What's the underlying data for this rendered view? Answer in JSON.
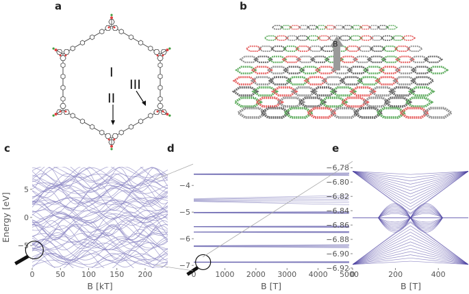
{
  "figure": {
    "panel_labels": {
      "a": "a",
      "b": "b",
      "c": "c",
      "d": "d",
      "e": "e"
    },
    "panel_a": {
      "region_labels": [
        "I",
        "II",
        "III"
      ],
      "description_colors": {
        "bond": "#444444",
        "boron": "#3c9a3c",
        "oxygen": "#e04040"
      }
    },
    "panel_b": {
      "field_label": "B",
      "arrow_color": "#9a9a9a"
    }
  },
  "chart_data": [
    {
      "panel": "c",
      "type": "line",
      "title": "",
      "xlabel": "B [kT]",
      "ylabel": "Energy [eV]",
      "xlim": [
        0,
        240
      ],
      "ylim": [
        -9,
        9
      ],
      "x_ticks": [
        0,
        50,
        100,
        150,
        200
      ],
      "y_ticks": [
        -5,
        0,
        5
      ],
      "grid": false,
      "line_color": "#8e88c4",
      "series": [
        {
          "values_description": "Hofstadter butterfly band structure; dense crossing bands spanning -9 to 9 eV"
        }
      ],
      "annotation": "magnifier circle at B≈0, E≈-6"
    },
    {
      "panel": "d",
      "type": "line",
      "title": "",
      "xlabel": "B [T]",
      "ylabel": "",
      "xlim": [
        0,
        5000
      ],
      "ylim": [
        -7.1,
        -3.2
      ],
      "x_ticks": [
        0,
        1000,
        2000,
        3000,
        4000,
        5000
      ],
      "y_ticks": [
        -7,
        -6,
        -5,
        -4
      ],
      "grid": false,
      "line_color": "#5a55a8",
      "band_groups_eV": [
        {
          "center": -3.58,
          "spread": 0.1
        },
        {
          "center": -4.55,
          "spread": 0.35
        },
        {
          "center": -5.02,
          "spread": 0.08
        },
        {
          "center": -5.55,
          "spread": 0.06
        },
        {
          "center": -5.75,
          "spread": 0.05
        },
        {
          "center": -6.28,
          "spread": 0.12
        },
        {
          "center": -6.88,
          "spread": 0.05
        }
      ],
      "annotation": "magnifier circle at B≈300, E≈-6.9"
    },
    {
      "panel": "e",
      "type": "line",
      "title": "",
      "xlabel": "B [T]",
      "ylabel": "",
      "xlim": [
        0,
        540
      ],
      "ylim": [
        -6.92,
        -6.775
      ],
      "x_ticks": [
        0,
        200,
        400
      ],
      "y_ticks": [
        -6.78,
        -6.8,
        -6.82,
        -6.84,
        -6.86,
        -6.88,
        -6.9,
        -6.92
      ],
      "y_tick_labels": [
        "−6.78",
        "−6.80",
        "−6.82",
        "−6.84",
        "−6.86",
        "−6.88",
        "−6.90",
        "−6.92"
      ],
      "grid": false,
      "line_color": "#4a3fa0",
      "series": [
        {
          "values_description": "Landau fan near band bottom: fans emanate from B=0 and B=540 T, butterfly pattern centered near -6.85"
        }
      ]
    }
  ],
  "ticks_text": {
    "c_x": [
      "0",
      "50",
      "100",
      "150",
      "200"
    ],
    "c_y": [
      "−5",
      "0",
      "5"
    ],
    "d_x": [
      "0",
      "1000",
      "2000",
      "3000",
      "4000",
      "5000"
    ],
    "d_y": [
      "−7",
      "−6",
      "−5",
      "−4"
    ],
    "e_x": [
      "0",
      "200",
      "400"
    ]
  }
}
